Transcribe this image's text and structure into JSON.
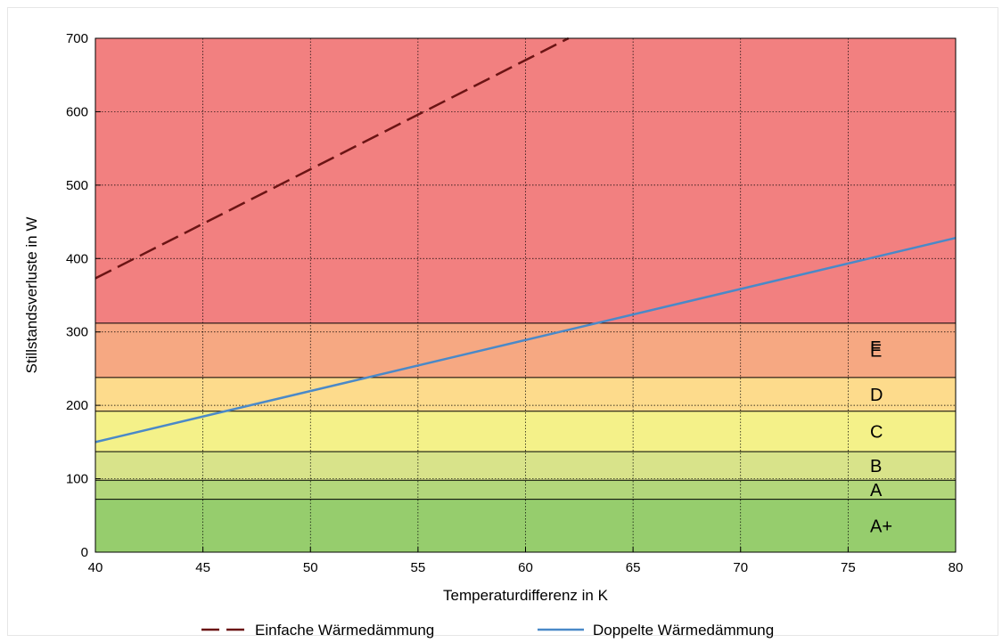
{
  "chart_data": {
    "type": "line",
    "xlabel": "Temperaturdifferenz in K",
    "ylabel": "Stillstandsverluste in W",
    "xlim": [
      40,
      80
    ],
    "ylim": [
      0,
      700
    ],
    "x_ticks": [
      "40",
      "45",
      "50",
      "55",
      "60",
      "65",
      "70",
      "75",
      "80"
    ],
    "y_ticks": [
      "0",
      "100",
      "200",
      "300",
      "400",
      "500",
      "600",
      "700"
    ],
    "grid": true,
    "legend_position": "bottom",
    "bands": [
      {
        "label": "A+",
        "from": 0,
        "to": 72,
        "color": "#96cd6d"
      },
      {
        "label": "A",
        "from": 72,
        "to": 98,
        "color": "#b3d77b"
      },
      {
        "label": "B",
        "from": 98,
        "to": 137,
        "color": "#d8e38a"
      },
      {
        "label": "C",
        "from": 137,
        "to": 192,
        "color": "#f4f189"
      },
      {
        "label": "D",
        "from": 192,
        "to": 238,
        "color": "#fddb8c"
      },
      {
        "label": "E",
        "from": 238,
        "to": 312,
        "color": "#f6a882"
      },
      {
        "label": "F",
        "from": 312,
        "to": 700,
        "color": "#f28080"
      }
    ],
    "series": [
      {
        "name": "Einfache Wärmedämmung",
        "color": "#6b1414",
        "dash": true,
        "x": [
          40,
          62
        ],
        "y": [
          373,
          700
        ]
      },
      {
        "name": "Doppelte Wärmedämmung",
        "color": "#4a89c8",
        "dash": false,
        "x": [
          40,
          80
        ],
        "y": [
          150,
          428
        ]
      }
    ]
  }
}
